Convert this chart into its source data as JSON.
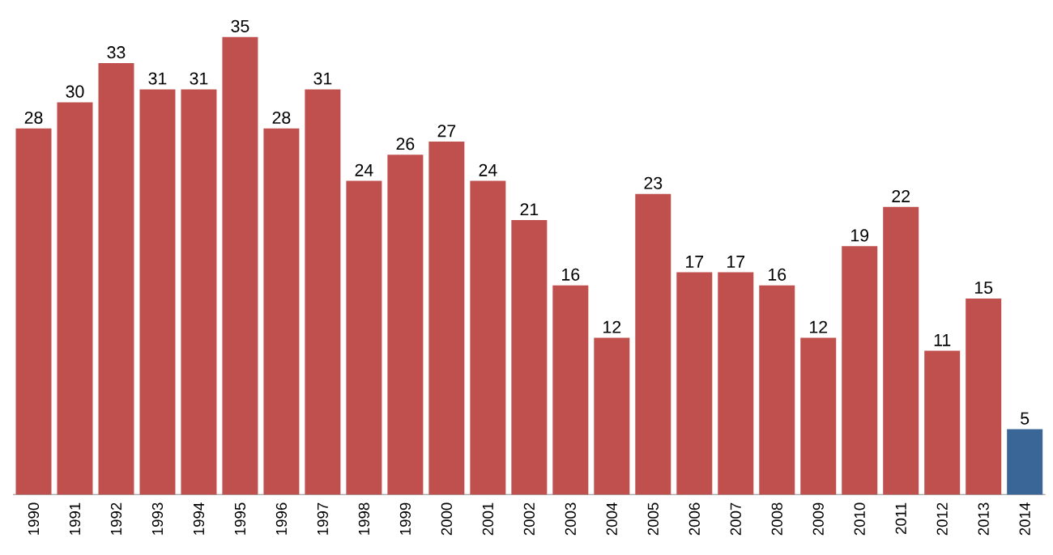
{
  "chart_data": {
    "type": "bar",
    "categories": [
      "1990",
      "1991",
      "1992",
      "1993",
      "1994",
      "1995",
      "1996",
      "1997",
      "1998",
      "1999",
      "2000",
      "2001",
      "2002",
      "2003",
      "2004",
      "2005",
      "2006",
      "2007",
      "2008",
      "2009",
      "2010",
      "2011",
      "2012",
      "2013",
      "2014"
    ],
    "values": [
      28,
      30,
      33,
      31,
      31,
      35,
      28,
      31,
      24,
      26,
      27,
      24,
      21,
      16,
      12,
      23,
      17,
      17,
      16,
      12,
      19,
      22,
      11,
      15,
      5
    ],
    "colors": [
      "#c0504d",
      "#c0504d",
      "#c0504d",
      "#c0504d",
      "#c0504d",
      "#c0504d",
      "#c0504d",
      "#c0504d",
      "#c0504d",
      "#c0504d",
      "#c0504d",
      "#c0504d",
      "#c0504d",
      "#c0504d",
      "#c0504d",
      "#c0504d",
      "#c0504d",
      "#c0504d",
      "#c0504d",
      "#c0504d",
      "#c0504d",
      "#c0504d",
      "#c0504d",
      "#c0504d",
      "#3a6597"
    ],
    "data_labels": true
  }
}
